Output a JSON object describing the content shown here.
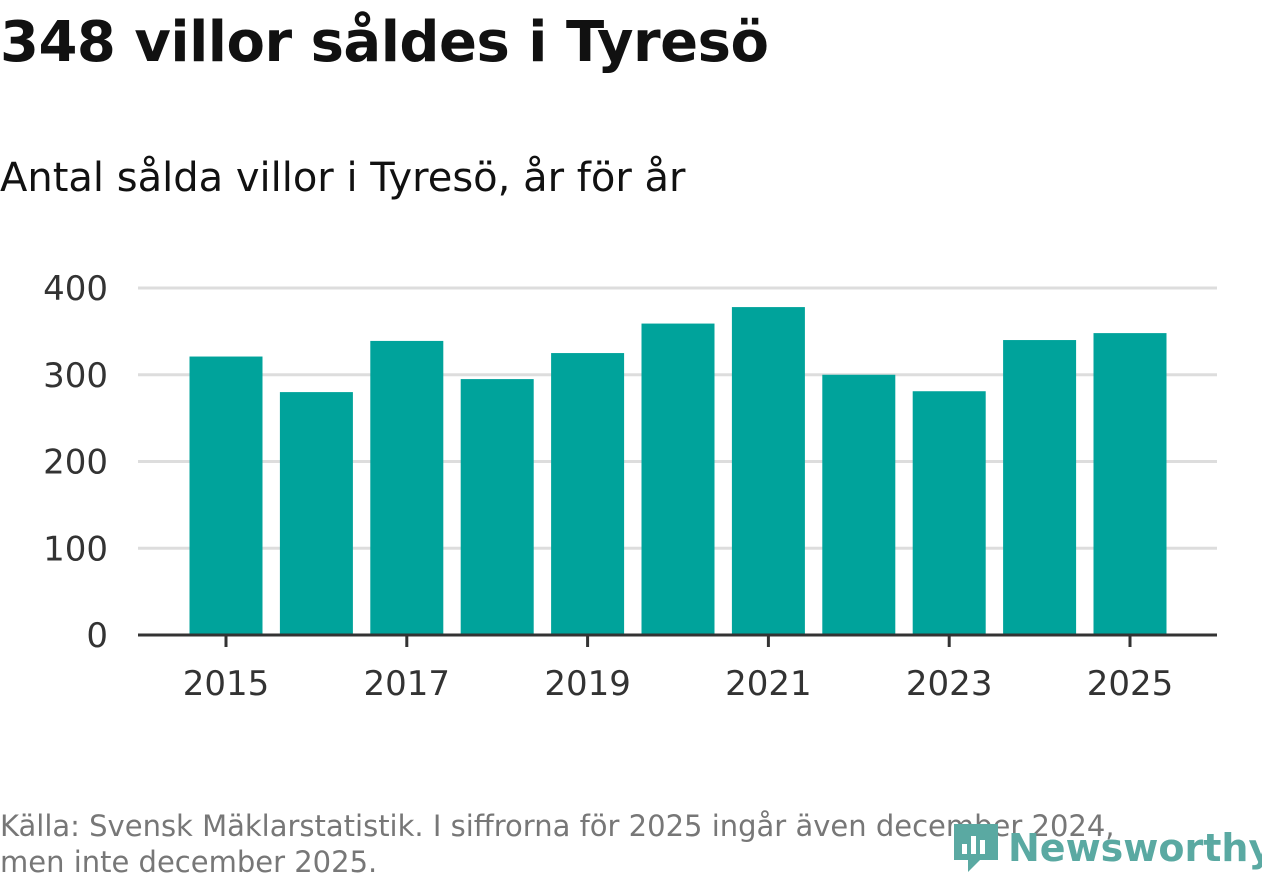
{
  "title": "348 villor såldes i Tyresö",
  "subtitle": "Antal sålda villor i Tyresö, år för år",
  "source": {
    "line1": "Källa: Svensk Mäklarstatistik. I siffrorna för 2025 ingår även december 2024,",
    "line2": "men inte december 2025."
  },
  "logo": {
    "text": "Newsworthy",
    "icon": "newsworthy-logo-icon"
  },
  "colors": {
    "bar": "#00a39b",
    "grid": "#dddddd",
    "axis": "#333333",
    "logo": "#5aa9a2"
  },
  "chart_data": {
    "type": "bar",
    "title": "348 villor såldes i Tyresö",
    "subtitle": "Antal sålda villor i Tyresö, år för år",
    "xlabel": "",
    "ylabel": "",
    "categories": [
      "2015",
      "2016",
      "2017",
      "2018",
      "2019",
      "2020",
      "2021",
      "2022",
      "2023",
      "2024",
      "2025"
    ],
    "values": [
      321,
      280,
      339,
      295,
      325,
      359,
      378,
      300,
      281,
      340,
      348
    ],
    "x_tick_labels": [
      "2015",
      "2017",
      "2019",
      "2021",
      "2023",
      "2025"
    ],
    "y_ticks": [
      0,
      100,
      200,
      300,
      400
    ],
    "ylim": [
      0,
      400
    ],
    "grid": true
  }
}
